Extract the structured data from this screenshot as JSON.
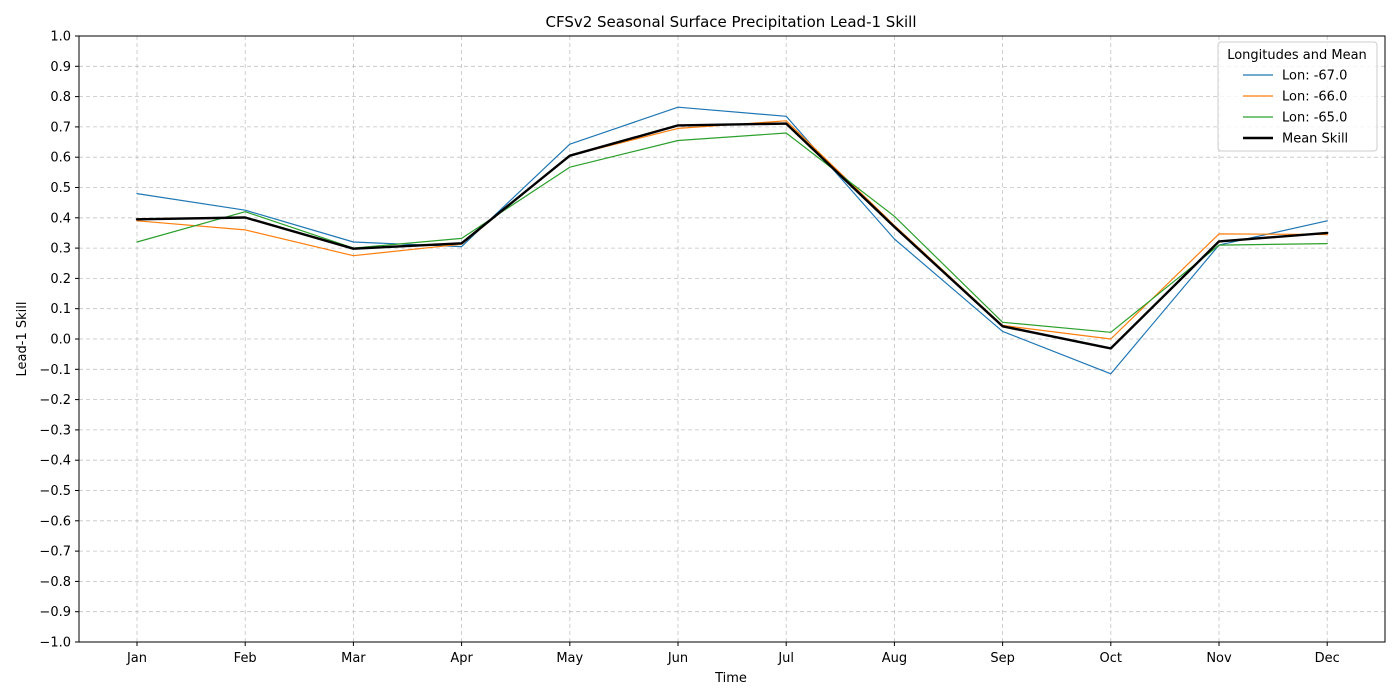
{
  "chart_data": {
    "type": "line",
    "title": "CFSv2 Seasonal Surface Precipitation Lead-1 Skill",
    "xlabel": "Time",
    "ylabel": "Lead-1 Skill",
    "ylim": [
      -1.0,
      1.0
    ],
    "yticks": [
      "1.0",
      "0.9",
      "0.8",
      "0.7",
      "0.6",
      "0.5",
      "0.4",
      "0.3",
      "0.2",
      "0.1",
      "0.0",
      "−0.1",
      "−0.2",
      "−0.3",
      "−0.4",
      "−0.5",
      "−0.6",
      "−0.7",
      "−0.8",
      "−0.9",
      "−1.0"
    ],
    "categories": [
      "Jan",
      "Feb",
      "Mar",
      "Apr",
      "May",
      "Jun",
      "Jul",
      "Aug",
      "Sep",
      "Oct",
      "Nov",
      "Dec"
    ],
    "grid": true,
    "legend": {
      "title": "Longitudes and Mean",
      "placement": "top-right"
    },
    "series": [
      {
        "name": "Lon: -67.0",
        "color": "#1f77b4",
        "width": 1.2,
        "values": [
          0.48,
          0.425,
          0.32,
          0.305,
          0.643,
          0.765,
          0.735,
          0.33,
          0.025,
          -0.115,
          0.31,
          0.39
        ]
      },
      {
        "name": "Lon: -66.0",
        "color": "#ff7f0e",
        "width": 1.2,
        "values": [
          0.39,
          0.36,
          0.275,
          0.313,
          0.605,
          0.695,
          0.72,
          0.375,
          0.045,
          0.0,
          0.347,
          0.345
        ]
      },
      {
        "name": "Lon: -65.0",
        "color": "#2ca02c",
        "width": 1.2,
        "values": [
          0.32,
          0.42,
          0.3,
          0.332,
          0.567,
          0.655,
          0.68,
          0.405,
          0.055,
          0.022,
          0.31,
          0.315
        ]
      },
      {
        "name": "Mean Skill",
        "color": "#000000",
        "width": 2.4,
        "values": [
          0.395,
          0.401,
          0.298,
          0.316,
          0.605,
          0.705,
          0.711,
          0.37,
          0.042,
          -0.031,
          0.322,
          0.35
        ]
      }
    ]
  }
}
